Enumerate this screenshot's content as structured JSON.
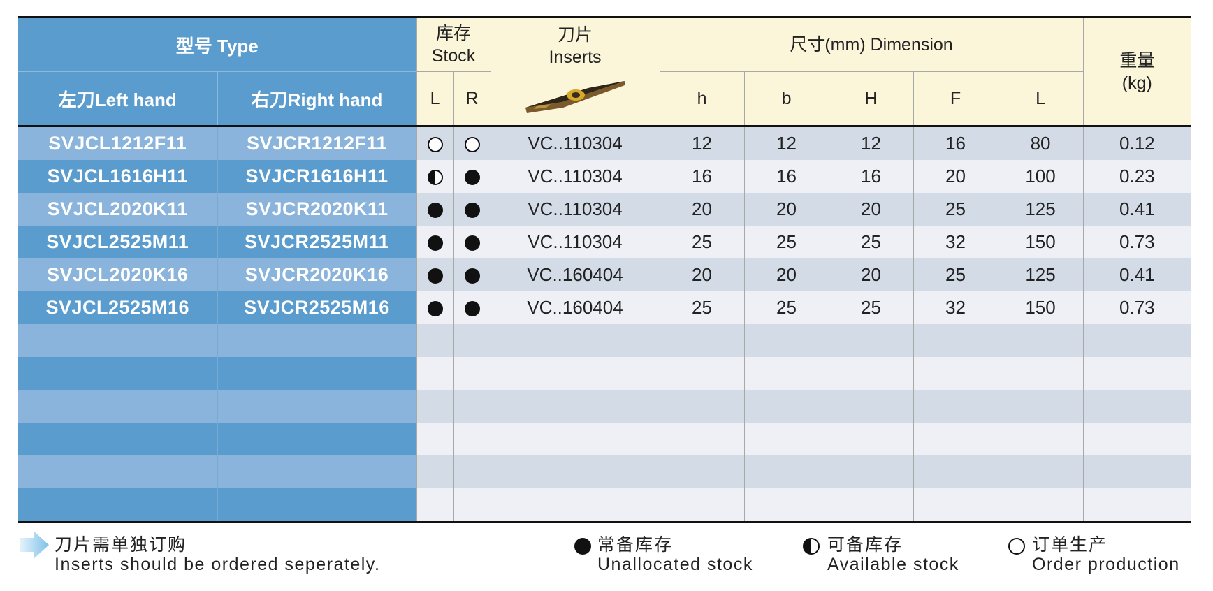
{
  "header": {
    "type_label": "型号 Type",
    "left_hand": "左刀Left hand",
    "right_hand": "右刀Right hand",
    "stock_cn": "库存",
    "stock_en": "Stock",
    "stock_l": "L",
    "stock_r": "R",
    "inserts_cn": "刀片",
    "inserts_en": "Inserts",
    "dimension": "尺寸(mm) Dimension",
    "dim_cols": [
      "h",
      "b",
      "H",
      "F",
      "L"
    ],
    "weight_cn": "重量",
    "weight_unit": "(kg)"
  },
  "rows": [
    {
      "left": "SVJCL1212F11",
      "right": "SVJCR1212F11",
      "stock_l": "order",
      "stock_r": "order",
      "insert": "VC..110304",
      "h": "12",
      "b": "12",
      "H": "12",
      "F": "16",
      "L": "80",
      "weight": "0.12"
    },
    {
      "left": "SVJCL1616H11",
      "right": "SVJCR1616H11",
      "stock_l": "available",
      "stock_r": "unallocated",
      "insert": "VC..110304",
      "h": "16",
      "b": "16",
      "H": "16",
      "F": "20",
      "L": "100",
      "weight": "0.23"
    },
    {
      "left": "SVJCL2020K11",
      "right": "SVJCR2020K11",
      "stock_l": "unallocated",
      "stock_r": "unallocated",
      "insert": "VC..110304",
      "h": "20",
      "b": "20",
      "H": "20",
      "F": "25",
      "L": "125",
      "weight": "0.41"
    },
    {
      "left": "SVJCL2525M11",
      "right": "SVJCR2525M11",
      "stock_l": "unallocated",
      "stock_r": "unallocated",
      "insert": "VC..110304",
      "h": "25",
      "b": "25",
      "H": "25",
      "F": "32",
      "L": "150",
      "weight": "0.73"
    },
    {
      "left": "SVJCL2020K16",
      "right": "SVJCR2020K16",
      "stock_l": "unallocated",
      "stock_r": "unallocated",
      "insert": "VC..160404",
      "h": "20",
      "b": "20",
      "H": "20",
      "F": "25",
      "L": "125",
      "weight": "0.41"
    },
    {
      "left": "SVJCL2525M16",
      "right": "SVJCR2525M16",
      "stock_l": "unallocated",
      "stock_r": "unallocated",
      "insert": "VC..160404",
      "h": "25",
      "b": "25",
      "H": "25",
      "F": "32",
      "L": "150",
      "weight": "0.73"
    }
  ],
  "empty_rows": 6,
  "footer": {
    "note_cn": "刀片需单独订购",
    "note_en": "Inserts should be ordered seperately.",
    "legend": [
      {
        "key": "unallocated",
        "cn": "常备库存",
        "en": "Unallocated stock"
      },
      {
        "key": "available",
        "cn": "可备库存",
        "en": "Available stock"
      },
      {
        "key": "order",
        "cn": "订单生产",
        "en": "Order production"
      }
    ]
  },
  "colors": {
    "header_blue": "#5b9ccf",
    "model_light_blue": "#8ab4db",
    "header_cream": "#fbf5d9",
    "row_odd": "#d3dbe6",
    "row_even": "#eef0f5"
  },
  "icons": {
    "insert": "insert-image-icon",
    "note_arrow": "arrow-right-icon",
    "unallocated": "filled-circle-icon",
    "available": "half-circle-icon",
    "order": "empty-circle-icon"
  }
}
